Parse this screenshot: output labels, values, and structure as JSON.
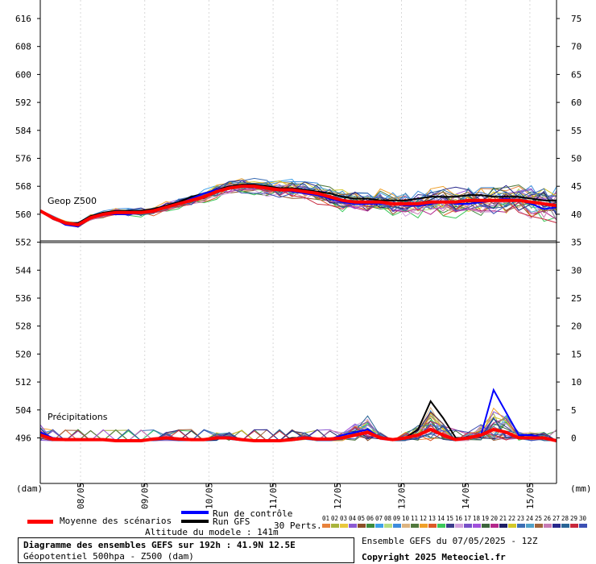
{
  "chart_data": {
    "type": "line",
    "left_axis": {
      "unit": "(dam)",
      "ticks": [
        616,
        608,
        600,
        592,
        584,
        576,
        568,
        560,
        552,
        544,
        536,
        528,
        520,
        512,
        504,
        496
      ]
    },
    "right_axis": {
      "unit": "(mm)",
      "ticks": [
        75,
        70,
        65,
        60,
        55,
        50,
        45,
        40,
        35,
        30,
        25,
        20,
        15,
        10,
        5,
        0
      ]
    },
    "x_ticks": [
      "08/05",
      "09/05",
      "10/05",
      "11/05",
      "12/05",
      "13/05",
      "14/05",
      "15/05"
    ],
    "top_panel_label": "Geop Z500",
    "bottom_panel_label": "Précipitations",
    "geopotential": {
      "ensemble_mean": [
        561,
        559,
        557.5,
        557,
        559,
        560,
        560.5,
        560.5,
        560.5,
        561,
        562,
        563,
        564,
        565,
        566.5,
        567.5,
        568,
        568,
        567.5,
        567,
        567,
        566.5,
        566,
        565,
        564,
        563.5,
        563.5,
        563.5,
        563,
        563,
        563,
        563.5,
        563.5,
        563.5,
        564,
        564,
        564,
        564,
        564,
        563.5,
        563,
        562.5
      ],
      "control_run": [
        561,
        559,
        557,
        556.5,
        559,
        560,
        560,
        560,
        560.5,
        561,
        562,
        563,
        564.5,
        566,
        567,
        567.5,
        568,
        568,
        567.5,
        567,
        566.5,
        566,
        565.5,
        564.5,
        563.5,
        563,
        563,
        563,
        563,
        562.5,
        562.5,
        563,
        563.5,
        563,
        563,
        563.5,
        564,
        564.5,
        564,
        563,
        561.5,
        562
      ],
      "gfs_run": [
        561,
        559,
        557.5,
        557.5,
        559.5,
        560.5,
        561,
        561,
        561,
        561.5,
        562.5,
        563.5,
        565,
        566,
        567,
        568,
        568.5,
        568.5,
        568,
        567.5,
        567.5,
        567,
        566.5,
        566,
        565,
        564.5,
        564.5,
        564,
        564,
        564,
        564.5,
        565,
        565,
        565,
        565.5,
        565.5,
        565,
        565,
        565,
        564.5,
        564,
        564
      ]
    },
    "precipitation": {
      "ensemble_mean": [
        1,
        0.3,
        0.2,
        0.2,
        0.2,
        0.2,
        0,
        0,
        0,
        0.3,
        0.5,
        0.3,
        0.2,
        0.2,
        0.5,
        0.5,
        0.2,
        0,
        0,
        0,
        0.2,
        0.5,
        0.3,
        0.3,
        0.5,
        1,
        1.5,
        0.5,
        0.2,
        0.5,
        1,
        2,
        1,
        0.2,
        0.5,
        1,
        2,
        1.5,
        0.5,
        0.5,
        0.5,
        0
      ],
      "control_run": [
        1.5,
        0.5,
        0.3,
        0.3,
        0.2,
        0.2,
        0,
        0,
        0,
        0.3,
        0.5,
        0.3,
        0.2,
        0.3,
        0.5,
        0.5,
        0.2,
        0,
        0,
        0,
        0.2,
        0.5,
        0.3,
        0.3,
        1,
        1.5,
        2,
        0.5,
        0.2,
        0.5,
        1,
        2,
        1,
        0.3,
        0.5,
        1,
        9,
        5,
        1,
        1,
        0.5,
        0
      ],
      "gfs_run": [
        1,
        0.3,
        0.2,
        0.2,
        0.2,
        0.2,
        0,
        0,
        0,
        0.3,
        0.5,
        0.3,
        0.2,
        0.2,
        0.5,
        0.5,
        0.2,
        0,
        0,
        0,
        0.5,
        0.5,
        0.3,
        0.3,
        0.5,
        1,
        1.5,
        0.5,
        0.2,
        0.5,
        2,
        7,
        4,
        0.5,
        0.5,
        1,
        2,
        1.5,
        0.5,
        0.5,
        0.5,
        0
      ]
    },
    "legend": {
      "mean_label": "Moyenne des scénarios",
      "control_label": "Run de contrôle",
      "gfs_label": "Run GFS",
      "perts_label": "30 Perts.",
      "member_numbers": [
        "01",
        "02",
        "03",
        "04",
        "05",
        "06",
        "07",
        "08",
        "09",
        "10",
        "11",
        "12",
        "13",
        "14",
        "15",
        "16",
        "17",
        "18",
        "19",
        "20",
        "21",
        "22",
        "23",
        "24",
        "25",
        "26",
        "27",
        "28",
        "29",
        "30"
      ],
      "member_colors": [
        "#e8823c",
        "#a8b43c",
        "#e8c83c",
        "#8c5ad2",
        "#8c5028",
        "#3c8c3c",
        "#3ca0e8",
        "#b4dc82",
        "#3c8cdc",
        "#dcb482",
        "#50783c",
        "#f0a028",
        "#dc5a28",
        "#3cc85a",
        "#3c3c8c",
        "#d2a0dc",
        "#7850c8",
        "#a050dc",
        "#3c643c",
        "#b4288c",
        "#1e1e64",
        "#d2c828",
        "#3c6eb4",
        "#50a0c8",
        "#a0643c",
        "#c87ab4",
        "#28288c",
        "#286496",
        "#c8283c",
        "#3c50b4"
      ]
    },
    "colors": {
      "mean": "#ff0000",
      "control": "#0000ff",
      "gfs": "#000000"
    }
  },
  "model_altitude": "Altitude du modele : 141m",
  "info_box": {
    "line1": "Diagramme des ensembles GEFS sur 192h : 41.9N 12.5E",
    "line2": "Géopotentiel 500hpa - Z500 (dam)"
  },
  "run_info": "Ensemble GEFS du 07/05/2025 - 12Z",
  "copyright": "Copyright 2025 Meteociel.fr"
}
